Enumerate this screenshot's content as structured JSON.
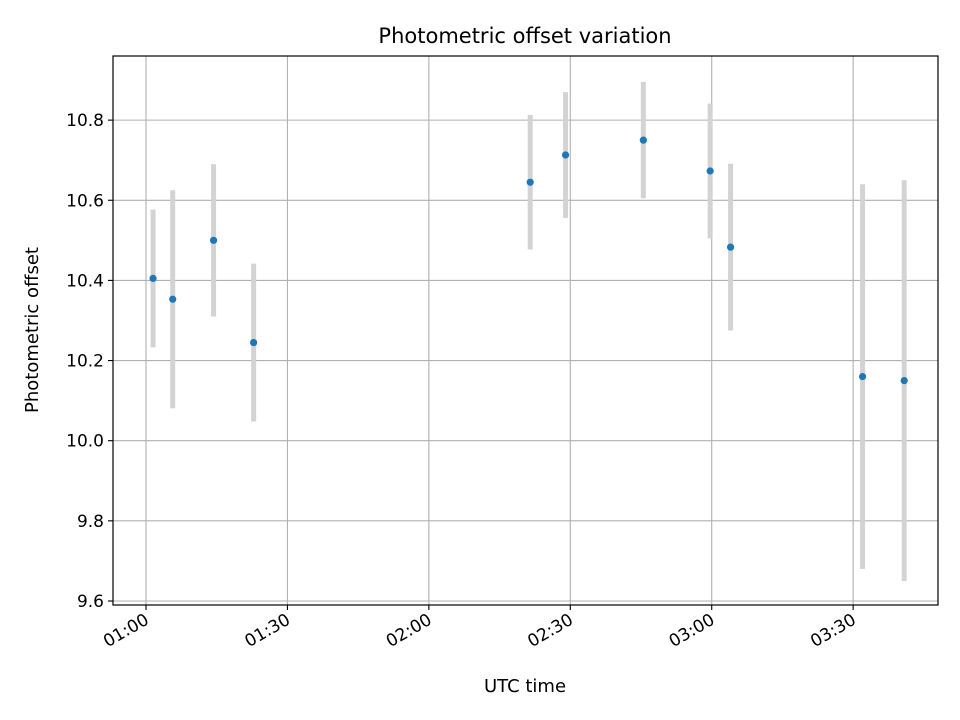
{
  "chart_data": {
    "type": "scatter",
    "title": "Photometric offset variation",
    "xlabel": "UTC time",
    "ylabel": "Photometric offset",
    "x_tick_labels": [
      "01:00",
      "01:30",
      "02:00",
      "02:30",
      "03:00",
      "03:30"
    ],
    "y_tick_labels": [
      "9.6",
      "9.8",
      "10.0",
      "10.2",
      "10.4",
      "10.6",
      "10.8"
    ],
    "xlim": [
      "00:53",
      "03:48"
    ],
    "ylim": [
      9.59,
      10.96
    ],
    "grid": true,
    "series": [
      {
        "marker_color": "#1f77b4",
        "errorbar_color": "#d3d3d3",
        "points": [
          {
            "x": "01:01:30",
            "y": 10.405,
            "err": 0.172
          },
          {
            "x": "01:05:40",
            "y": 10.353,
            "err": 0.272
          },
          {
            "x": "01:14:20",
            "y": 10.5,
            "err": 0.19
          },
          {
            "x": "01:22:50",
            "y": 10.245,
            "err": 0.197
          },
          {
            "x": "02:21:30",
            "y": 10.645,
            "err": 0.168
          },
          {
            "x": "02:29:00",
            "y": 10.713,
            "err": 0.157
          },
          {
            "x": "02:45:30",
            "y": 10.75,
            "err": 0.145
          },
          {
            "x": "02:59:40",
            "y": 10.673,
            "err": 0.168
          },
          {
            "x": "03:04:00",
            "y": 10.483,
            "err": 0.208
          },
          {
            "x": "03:32:00",
            "y": 10.16,
            "err": 0.48
          },
          {
            "x": "03:40:50",
            "y": 10.15,
            "err": 0.5
          }
        ]
      }
    ]
  }
}
